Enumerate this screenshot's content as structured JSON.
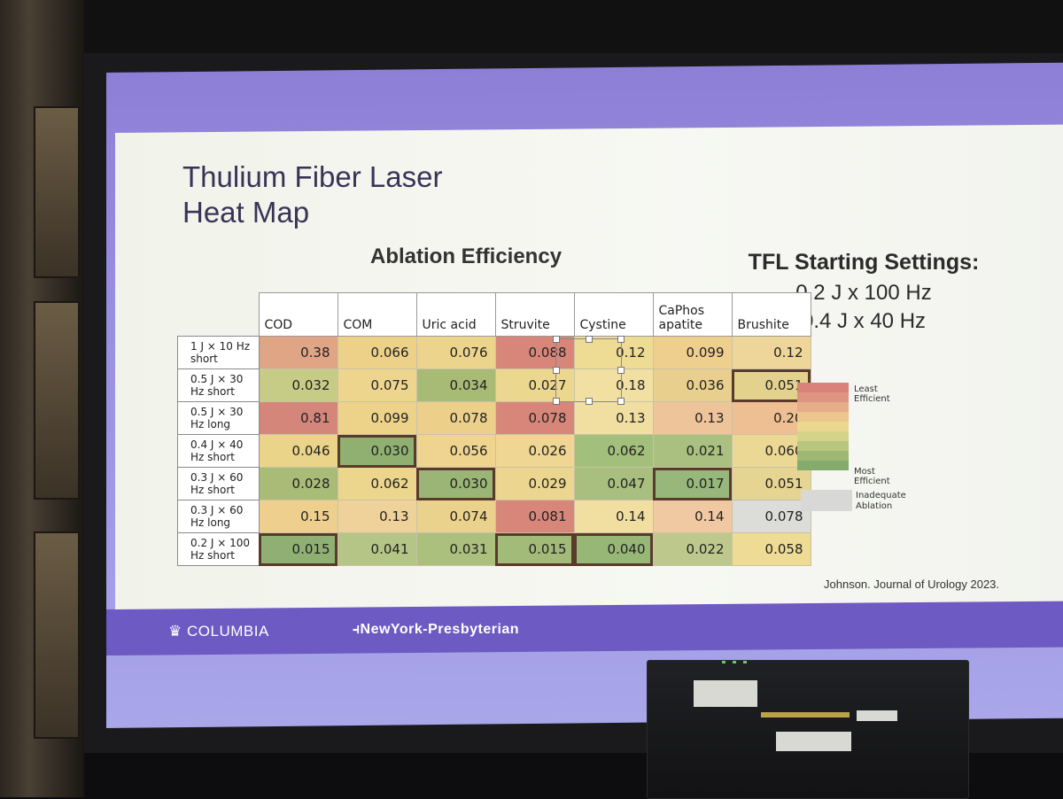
{
  "slide": {
    "title_line1": "Thulium Fiber Laser",
    "title_line2": "Heat Map",
    "section_title": "Ablation Efficiency",
    "settings": {
      "header": "TFL Starting Settings:",
      "line1": "0.2 J x 100 Hz",
      "line2": "0.4 J x 40 Hz"
    },
    "citation": "Johnson. Journal of Urology 2023."
  },
  "heatmap": {
    "columns": [
      "COD",
      "COM",
      "Uric acid",
      "Struvite",
      "Cystine",
      "CaPhos apatite",
      "Brushite"
    ],
    "rows": [
      {
        "label": "1 J × 10 Hz short",
        "values": [
          "0.38",
          "0.066",
          "0.076",
          "0.088",
          "0.12",
          "0.099",
          "0.12"
        ],
        "colors": [
          "#e0a585",
          "#eed189",
          "#edd48c",
          "#d8867a",
          "#eedb94",
          "#efcf8e",
          "#eed59a"
        ],
        "hl": [
          0,
          0,
          0,
          0,
          0,
          0,
          0
        ]
      },
      {
        "label": "0.5 J × 30 Hz short",
        "values": [
          "0.032",
          "0.075",
          "0.034",
          "0.027",
          "0.18",
          "0.036",
          "0.051"
        ],
        "colors": [
          "#c6cb86",
          "#edd58e",
          "#a7bb74",
          "#ecd78e",
          "#f1e0a1",
          "#e8cf8d",
          "#e3d28e"
        ],
        "hl": [
          0,
          0,
          0,
          0,
          0,
          0,
          1
        ]
      },
      {
        "label": "0.5 J × 30 Hz long",
        "values": [
          "0.81",
          "0.099",
          "0.078",
          "0.078",
          "0.13",
          "0.13",
          "0.20"
        ],
        "colors": [
          "#d4867b",
          "#edd289",
          "#eccf89",
          "#d8867a",
          "#f1dea1",
          "#eec49a",
          "#eebf92"
        ],
        "hl": [
          0,
          0,
          0,
          0,
          0,
          0,
          0
        ]
      },
      {
        "label": "0.4 J × 40 Hz short",
        "values": [
          "0.046",
          "0.030",
          "0.056",
          "0.026",
          "0.062",
          "0.021",
          "0.060"
        ],
        "colors": [
          "#ead489",
          "#8fb071",
          "#efd48f",
          "#efd692",
          "#a3bf7c",
          "#a9c081",
          "#ecd895"
        ],
        "hl": [
          0,
          1,
          0,
          0,
          0,
          0,
          0
        ]
      },
      {
        "label": "0.3 J × 60 Hz short",
        "values": [
          "0.028",
          "0.062",
          "0.030",
          "0.029",
          "0.047",
          "0.017",
          "0.051"
        ],
        "colors": [
          "#a8bc77",
          "#ecd58c",
          "#9ab575",
          "#ecd58e",
          "#a8bf80",
          "#98b77b",
          "#e6d592"
        ],
        "hl": [
          0,
          0,
          1,
          0,
          0,
          1,
          0
        ]
      },
      {
        "label": "0.3 J × 60 Hz long",
        "values": [
          "0.15",
          "0.13",
          "0.074",
          "0.081",
          "0.14",
          "0.14",
          "0.078"
        ],
        "colors": [
          "#efcf8e",
          "#eed29a",
          "#ebd28c",
          "#d8867a",
          "#f1dea1",
          "#f0c9a2",
          "#dcdcd8"
        ],
        "hl": [
          0,
          0,
          0,
          0,
          0,
          0,
          0
        ]
      },
      {
        "label": "0.2 J × 100 Hz short",
        "values": [
          "0.015",
          "0.041",
          "0.031",
          "0.015",
          "0.040",
          "0.022",
          "0.058"
        ],
        "colors": [
          "#8fb072",
          "#b5c585",
          "#abc07d",
          "#a3bb79",
          "#97b777",
          "#bdc98c",
          "#eedb94"
        ],
        "hl": [
          1,
          0,
          0,
          1,
          1,
          0,
          0
        ]
      }
    ]
  },
  "legend": {
    "least": "Least Efficient",
    "most": "Most Efficient",
    "inadequate_line1": "Inadequate",
    "inadequate_line2": "Ablation",
    "gradient": [
      "#d9817a",
      "#dd9582",
      "#e5ad88",
      "#edc68e",
      "#ead88f",
      "#d5d38a",
      "#b8c67e",
      "#9cb873",
      "#84aa6c"
    ]
  },
  "footer": {
    "columbia": "COLUMBIA",
    "nyp": "NewYork-Presbyterian"
  }
}
